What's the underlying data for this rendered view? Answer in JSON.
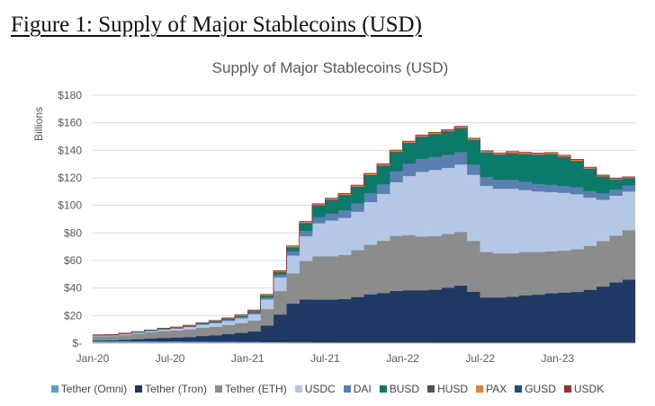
{
  "figure_caption": "Figure 1: Supply of Major Stablecoins (USD)",
  "chart_data": {
    "type": "area",
    "stacked": true,
    "title": "Supply of Major Stablecoins (USD)",
    "xlabel": "",
    "ylabel": "Billions",
    "ylim": [
      0,
      180
    ],
    "yticks": [
      0,
      20,
      40,
      60,
      80,
      100,
      120,
      140,
      160,
      180
    ],
    "ytick_labels": [
      "$-",
      "$20",
      "$40",
      "$60",
      "$80",
      "$100",
      "$120",
      "$140",
      "$160",
      "$180"
    ],
    "xticks": [
      "Jan-20",
      "Jul-20",
      "Jan-21",
      "Jul-21",
      "Jan-22",
      "Jul-22",
      "Jan-23"
    ],
    "grid": "horizontal",
    "legend_position": "bottom",
    "x": [
      "2020-01",
      "2020-02",
      "2020-03",
      "2020-04",
      "2020-05",
      "2020-06",
      "2020-07",
      "2020-08",
      "2020-09",
      "2020-10",
      "2020-11",
      "2020-12",
      "2021-01",
      "2021-02",
      "2021-03",
      "2021-04",
      "2021-05",
      "2021-06",
      "2021-07",
      "2021-08",
      "2021-09",
      "2021-10",
      "2021-11",
      "2021-12",
      "2022-01",
      "2022-02",
      "2022-03",
      "2022-04",
      "2022-05",
      "2022-06",
      "2022-07",
      "2022-08",
      "2022-09",
      "2022-10",
      "2022-11",
      "2022-12",
      "2023-01",
      "2023-02",
      "2023-03",
      "2023-04",
      "2023-05",
      "2023-06"
    ],
    "series": [
      {
        "name": "Tether (Omni)",
        "color": "#5b9bd5",
        "values": [
          1.5,
          1.5,
          1.5,
          1.4,
          1.4,
          1.3,
          1.3,
          1.2,
          1.2,
          1.1,
          1.1,
          1.0,
          1.0,
          0.8,
          0.8,
          0.7,
          0.7,
          0.6,
          0.6,
          0.5,
          0.5,
          0.5,
          0.4,
          0.4,
          0.4,
          0.4,
          0.3,
          0.3,
          0.3,
          0.3,
          0.2,
          0.2,
          0.2,
          0.2,
          0.2,
          0.2,
          0.2,
          0.2,
          0.2,
          0.1,
          0.1,
          0.1
        ]
      },
      {
        "name": "Tether (Tron)",
        "color": "#1f3864",
        "values": [
          0.5,
          0.6,
          1.0,
          1.5,
          2.0,
          2.5,
          2.8,
          3.2,
          4.0,
          4.6,
          5.5,
          6.5,
          7.5,
          12.0,
          20.0,
          28.0,
          31.0,
          31.0,
          31.0,
          31.5,
          33.0,
          35.0,
          36.0,
          37.5,
          38.0,
          38.0,
          38.5,
          40.0,
          41.5,
          37.0,
          33.0,
          33.0,
          33.5,
          34.5,
          35.0,
          36.0,
          36.5,
          37.0,
          38.5,
          41.0,
          44.0,
          46.0
        ]
      },
      {
        "name": "Tether (ETH)",
        "color": "#8c8c8c",
        "values": [
          3.0,
          3.0,
          3.4,
          4.0,
          4.6,
          5.0,
          5.2,
          5.6,
          6.0,
          6.2,
          6.6,
          7.0,
          8.0,
          12.0,
          17.0,
          22.0,
          28.0,
          31.5,
          31.5,
          32.0,
          34.0,
          36.0,
          38.0,
          40.0,
          40.0,
          39.0,
          39.0,
          39.0,
          39.0,
          37.0,
          33.0,
          32.0,
          31.5,
          31.5,
          31.0,
          30.5,
          30.5,
          31.0,
          32.0,
          33.0,
          34.0,
          36.0
        ]
      },
      {
        "name": "USDC",
        "color": "#b4c7e7",
        "values": [
          0.5,
          0.6,
          0.7,
          0.8,
          0.9,
          1.1,
          1.4,
          1.8,
          2.3,
          2.7,
          3.0,
          3.5,
          4.5,
          7.0,
          10.0,
          13.0,
          18.0,
          24.0,
          26.0,
          27.0,
          28.0,
          31.0,
          34.0,
          39.0,
          43.0,
          47.0,
          48.0,
          48.0,
          49.0,
          48.0,
          48.0,
          47.0,
          47.0,
          45.0,
          44.0,
          43.0,
          42.0,
          40.0,
          35.0,
          30.0,
          29.0,
          28.0
        ]
      },
      {
        "name": "DAI",
        "color": "#5b7fb0",
        "values": [
          0.1,
          0.1,
          0.1,
          0.1,
          0.1,
          0.2,
          0.2,
          0.3,
          0.4,
          0.6,
          0.8,
          1.0,
          1.2,
          1.5,
          2.0,
          3.0,
          4.0,
          4.5,
          5.0,
          5.5,
          6.0,
          6.5,
          7.0,
          8.0,
          9.0,
          9.5,
          9.5,
          9.5,
          9.0,
          7.5,
          6.5,
          6.5,
          6.5,
          6.0,
          5.5,
          5.5,
          5.0,
          5.0,
          4.8,
          4.8,
          4.5,
          4.5
        ]
      },
      {
        "name": "BUSD",
        "color": "#0b7a6a",
        "values": [
          0.1,
          0.1,
          0.2,
          0.2,
          0.2,
          0.2,
          0.2,
          0.3,
          0.4,
          0.5,
          0.5,
          0.6,
          0.8,
          1.0,
          1.5,
          2.5,
          5.0,
          8.0,
          9.5,
          10.5,
          11.5,
          12.5,
          13.0,
          13.5,
          14.5,
          15.5,
          16.0,
          16.5,
          17.0,
          17.5,
          17.5,
          18.0,
          19.0,
          20.0,
          21.0,
          22.0,
          21.0,
          19.0,
          16.0,
          12.0,
          7.0,
          5.0
        ]
      },
      {
        "name": "HUSD",
        "color": "#44546a",
        "values": [
          0.1,
          0.1,
          0.1,
          0.1,
          0.1,
          0.1,
          0.2,
          0.2,
          0.2,
          0.3,
          0.3,
          0.3,
          0.4,
          0.4,
          0.5,
          0.5,
          0.6,
          0.6,
          0.6,
          0.6,
          0.6,
          0.6,
          0.6,
          0.6,
          0.6,
          0.6,
          0.6,
          0.6,
          0.5,
          0.4,
          0.3,
          0.3,
          0.3,
          0.2,
          0.2,
          0.2,
          0.2,
          0.2,
          0.2,
          0.2,
          0.2,
          0.2
        ]
      },
      {
        "name": "PAX",
        "color": "#ed7d31",
        "values": [
          0.2,
          0.2,
          0.2,
          0.2,
          0.2,
          0.3,
          0.3,
          0.3,
          0.3,
          0.4,
          0.4,
          0.5,
          0.5,
          0.6,
          0.7,
          0.8,
          0.9,
          0.9,
          0.9,
          0.9,
          1.0,
          1.0,
          1.0,
          1.0,
          1.0,
          1.0,
          1.0,
          1.0,
          1.0,
          1.0,
          1.0,
          1.0,
          1.0,
          1.0,
          0.9,
          0.9,
          0.9,
          0.9,
          0.9,
          0.8,
          0.8,
          0.8
        ]
      },
      {
        "name": "GUSD",
        "color": "#1f4e79",
        "values": [
          0.05,
          0.05,
          0.05,
          0.05,
          0.05,
          0.05,
          0.05,
          0.05,
          0.05,
          0.05,
          0.05,
          0.05,
          0.1,
          0.1,
          0.1,
          0.1,
          0.1,
          0.1,
          0.1,
          0.1,
          0.1,
          0.1,
          0.1,
          0.1,
          0.1,
          0.1,
          0.1,
          0.1,
          0.1,
          0.1,
          0.1,
          0.1,
          0.1,
          0.1,
          0.1,
          0.1,
          0.1,
          0.1,
          0.1,
          0.1,
          0.1,
          0.1
        ]
      },
      {
        "name": "USDK",
        "color": "#a52a2a",
        "values": [
          0.1,
          0.1,
          0.1,
          0.1,
          0.1,
          0.1,
          0.1,
          0.1,
          0.1,
          0.1,
          0.1,
          0.1,
          0.1,
          0.1,
          0.1,
          0.1,
          0.1,
          0.1,
          0.1,
          0.1,
          0.1,
          0.1,
          0.1,
          0.1,
          0.1,
          0.1,
          0.1,
          0.1,
          0.1,
          0.1,
          0.1,
          0.1,
          0.1,
          0.1,
          0.1,
          0.1,
          0.1,
          0.1,
          0.1,
          0.1,
          0.1,
          0.1
        ]
      }
    ]
  }
}
